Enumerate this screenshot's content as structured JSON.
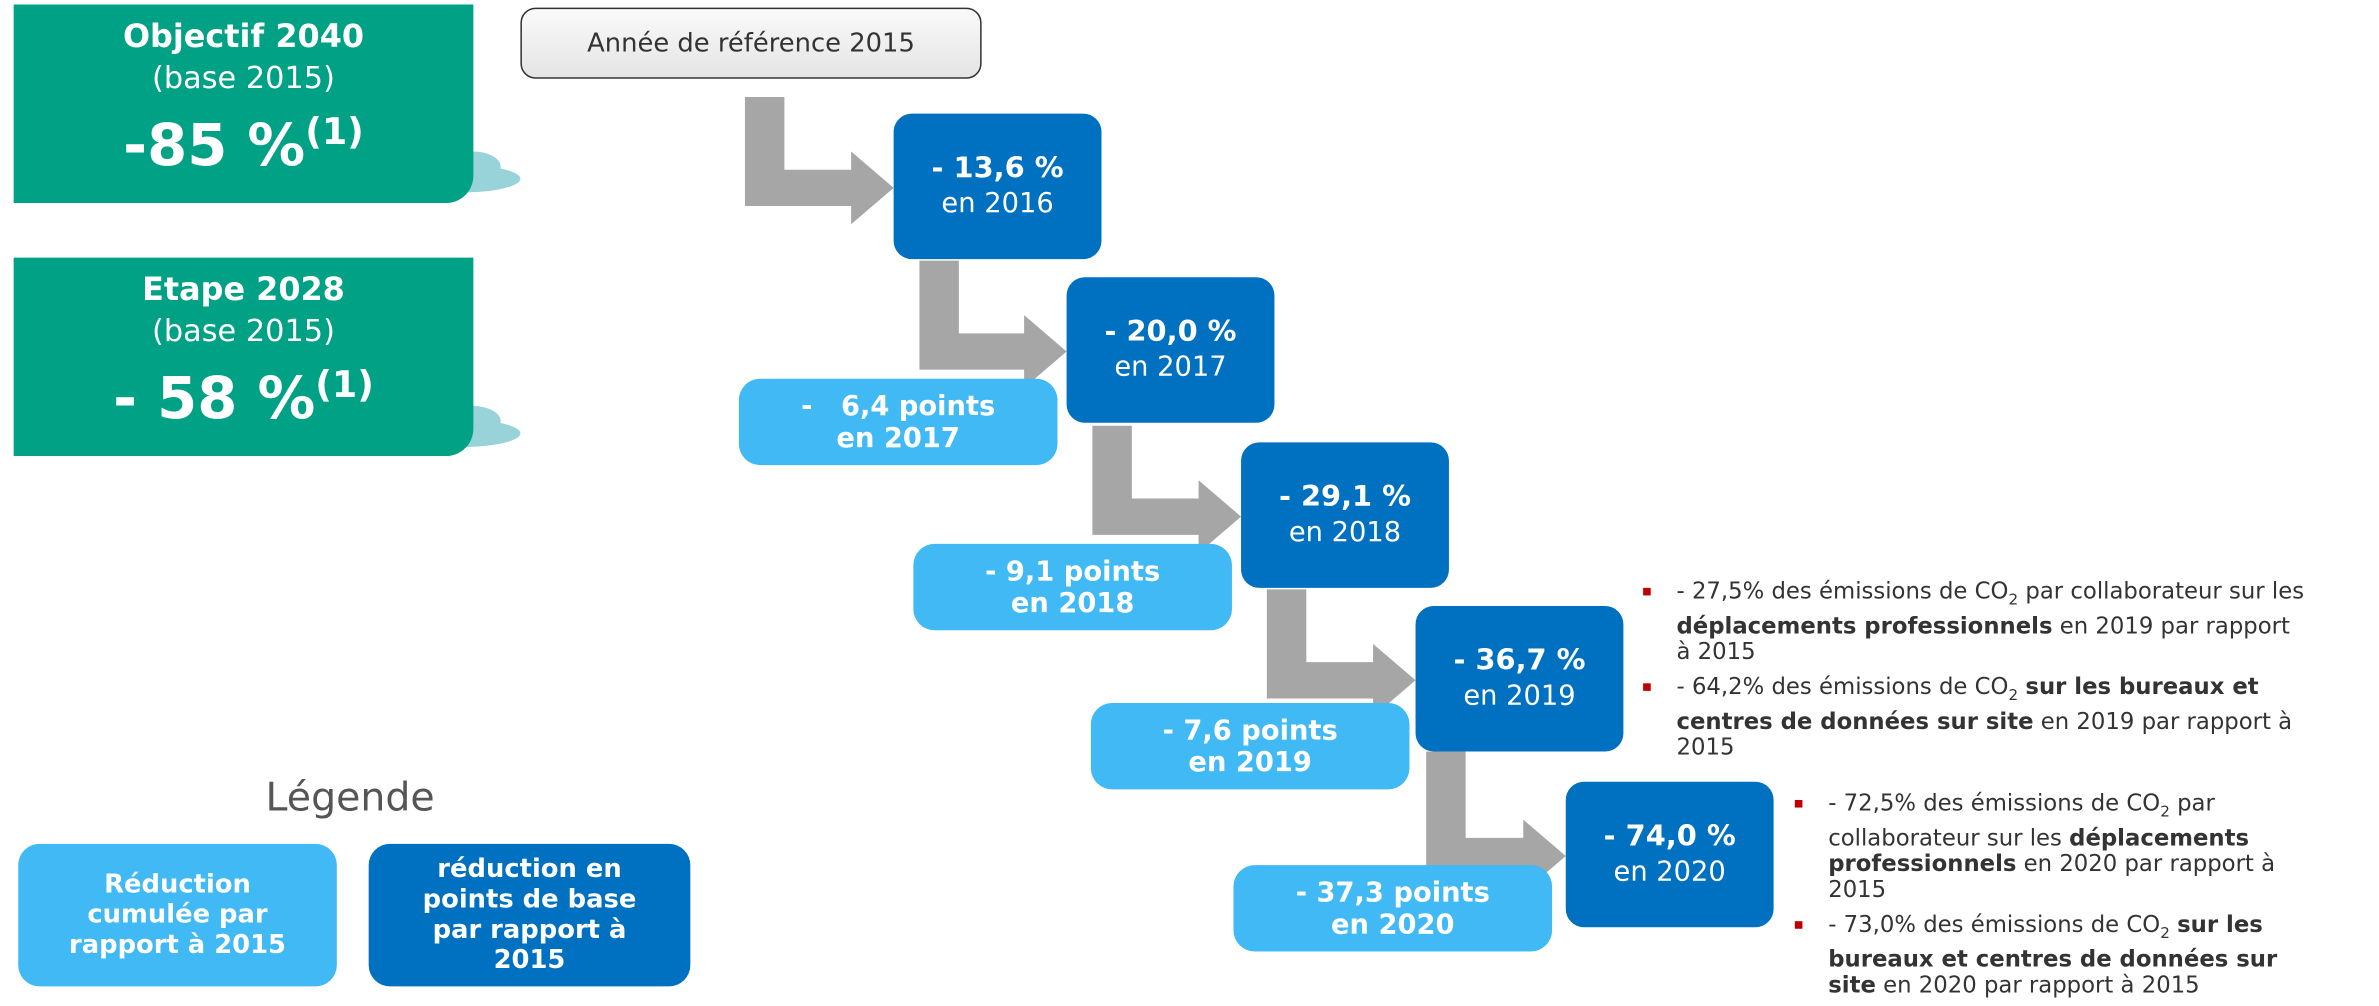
{
  "targets": [
    {
      "title": "Objectif 2040",
      "base": "(base 2015)",
      "value": "-85 %",
      "note": "(1)"
    },
    {
      "title": "Etape 2028",
      "base": "(base 2015)",
      "value": "- 58 %",
      "note": "(1)"
    }
  ],
  "reference": "Année de référence 2015",
  "steps": [
    {
      "reduction": "- 13,6 %",
      "year": "en 2016"
    },
    {
      "reduction": "- 20,0 %",
      "year": "en 2017",
      "points": [
        "-   6,4 points",
        "en 2017"
      ]
    },
    {
      "reduction": "- 29,1 %",
      "year": "en 2018",
      "points": [
        "- 9,1 points",
        "en 2018"
      ]
    },
    {
      "reduction": "- 36,7 %",
      "year": "en 2019",
      "points": [
        "- 7,6 points",
        "en 2019"
      ]
    },
    {
      "reduction": "- 74,0 %",
      "year": "en 2020",
      "points": [
        "- 37,3 points",
        "en 2020"
      ]
    }
  ],
  "legend": {
    "title": "Légende",
    "items": [
      [
        "Réduction",
        "cumulée par",
        "rapport à 2015"
      ],
      [
        "réduction en",
        "points de base",
        "par rapport à",
        "2015"
      ]
    ]
  },
  "notes": [
    [
      [
        {
          "t": "- 27,5% des émissions de CO"
        },
        {
          "sub": "2"
        },
        {
          "t": " par collaborateur sur les "
        },
        {
          "b": "déplacements professionnels"
        },
        {
          "t": " en 2019 par rapport à 2015"
        }
      ],
      [
        {
          "t": "- 64,2% des émissions de CO"
        },
        {
          "sub": "2"
        },
        {
          "t": " "
        },
        {
          "b": "sur les bureaux et centres de données sur site"
        },
        {
          "t": " en 2019 par rapport à 2015"
        }
      ]
    ],
    [
      [
        {
          "t": "- 72,5% des émissions de CO"
        },
        {
          "sub": "2"
        },
        {
          "t": " par collaborateur sur les "
        },
        {
          "b": "déplacements professionnels"
        },
        {
          "t": " en 2020 par rapport à 2015"
        }
      ],
      [
        {
          "t": "- 73,0% des émissions de CO"
        },
        {
          "sub": "2"
        },
        {
          "t": " "
        },
        {
          "b": "sur les bureaux et centres de données sur site"
        },
        {
          "t": " en 2020 par rapport à 2015"
        }
      ]
    ]
  ]
}
